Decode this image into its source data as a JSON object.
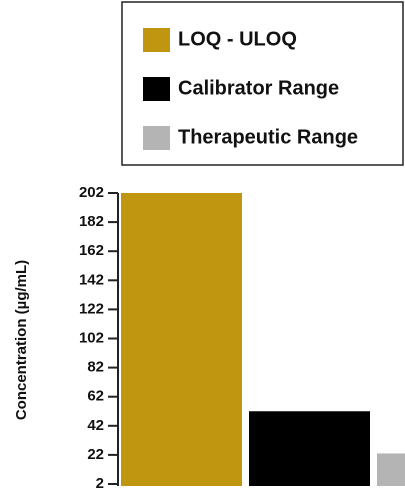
{
  "chart_data": {
    "type": "bar",
    "y_label": "Concentration (µg/mL)",
    "categories": [
      null
    ],
    "series": [
      {
        "name": "LOQ - ULOQ",
        "color": "#c0950f",
        "values": [
          202
        ]
      },
      {
        "name": "Calibrator Range",
        "color": "#000000",
        "values": [
          52
        ]
      },
      {
        "name": "Therapeutic Range",
        "color": "#b4b4b4",
        "values": [
          23
        ]
      }
    ],
    "ylim": [
      2,
      202
    ],
    "yticks": [
      2,
      22,
      42,
      62,
      82,
      102,
      122,
      142,
      162,
      182,
      202
    ],
    "grid": false
  }
}
